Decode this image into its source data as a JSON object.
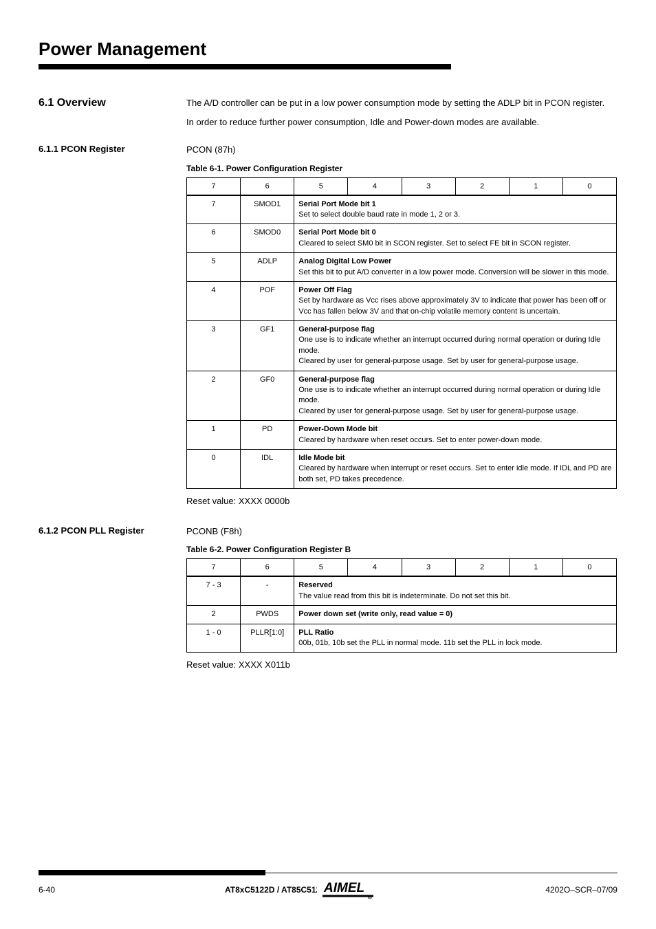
{
  "chapter": {
    "title": "Power Management"
  },
  "overview": {
    "heading": "6.1 Overview",
    "paragraph1": "The A/D controller can be put in a low power consumption mode by setting the ADLP bit in PCON register.",
    "paragraph2": "In order to reduce further power consumption, Idle and Power-down modes are available."
  },
  "pcon_section": {
    "heading": "6.1.1 PCON Register",
    "addr_line": "PCON (87h)",
    "table_caption": "Table 6-1. Power Configuration Register",
    "header_bits": [
      "7",
      "6",
      "5",
      "4",
      "3",
      "2",
      "1",
      "0"
    ],
    "rows": [
      {
        "bit": "7",
        "mne": "SMOD1",
        "desc": "Serial Port Mode bit 1\nSet to select double baud rate in mode 1, 2 or 3."
      },
      {
        "bit": "6",
        "mne": "SMOD0",
        "desc": "Serial Port Mode bit 0\nCleared to select SM0 bit in SCON register. Set to select FE bit in SCON register."
      },
      {
        "bit": "5",
        "mne": "ADLP",
        "desc": "Analog Digital Low Power\nSet this bit to put A/D converter in a low power mode. Conversion will be slower in this mode."
      },
      {
        "bit": "4",
        "mne": "POF",
        "desc": "Power Off Flag\nSet by hardware as Vcc rises above approximately 3V to indicate that power has been off or Vcc has fallen below 3V and that on-chip volatile memory content is uncertain."
      },
      {
        "bit": "3",
        "mne": "GF1",
        "desc": "General-purpose flag\nOne use is to indicate whether an interrupt occurred during normal operation or during Idle mode.\nCleared by user for general-purpose usage. Set by user for general-purpose usage."
      },
      {
        "bit": "2",
        "mne": "GF0",
        "desc": "General-purpose flag\nOne use is to indicate whether an interrupt occurred during normal operation or during Idle mode.\nCleared by user for general-purpose usage. Set by user for general-purpose usage."
      },
      {
        "bit": "1",
        "mne": "PD",
        "desc": "Power-Down Mode bit\nCleared by hardware when reset occurs. Set to enter power-down mode."
      },
      {
        "bit": "0",
        "mne": "IDL",
        "desc": "Idle Mode bit\nCleared by hardware when interrupt or reset occurs. Set to enter idle mode. If IDL and PD are both set, PD takes precedence."
      }
    ],
    "reset_line": "Reset value: XXXX 0000b"
  },
  "pconb_section": {
    "heading": "6.1.2 PCON PLL Register",
    "addr_line": "PCONB (F8h)",
    "table_caption": "Table 6-2. Power Configuration Register B",
    "header_bits": [
      "7",
      "6",
      "5",
      "4",
      "3",
      "2",
      "1",
      "0"
    ],
    "rows": [
      {
        "bit": "7 - 3",
        "mne": "-",
        "desc": "Reserved\nThe value read from this bit is indeterminate. Do not set this bit."
      },
      {
        "bit": "2",
        "mne": "PWDS",
        "desc": "Power down set (write only, read value = 0)"
      },
      {
        "bit": "1 - 0",
        "mne": "PLLR[1:0]",
        "desc": "PLL Ratio\n00b, 01b, 10b set the PLL in normal mode. 11b set the PLL in lock mode."
      }
    ],
    "reset_line": "Reset value: XXXX X011b"
  },
  "footer": {
    "page": "6-40",
    "doc_title": "AT8xC5122D / AT85C5122 / AT83R5122",
    "doc_id": "4202O–SCR–07/09"
  },
  "colors": {
    "text": "#000000",
    "background": "#ffffff",
    "rule": "#000000",
    "table_border": "#000000"
  },
  "typography": {
    "chapter_title_size": 26,
    "section_heading_size": 16,
    "subsection_heading_size": 13,
    "body_size": 13,
    "caption_size": 12,
    "table_body_size": 11,
    "footer_size": 12
  }
}
